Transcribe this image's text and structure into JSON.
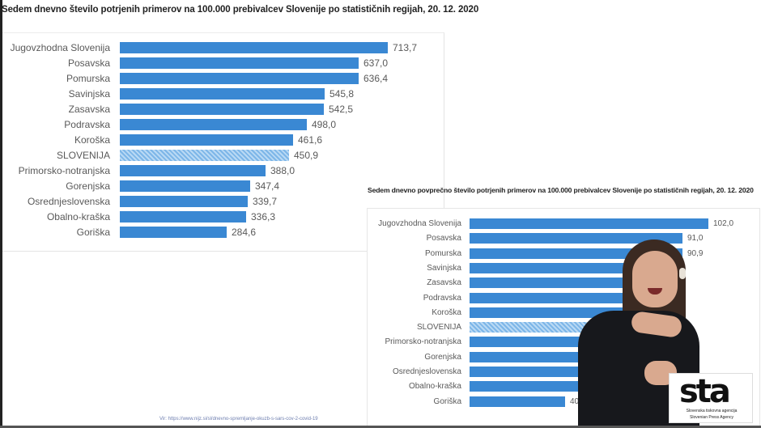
{
  "chart_data": [
    {
      "type": "bar",
      "orientation": "horizontal",
      "title": "Sedem dnevno število potrjenih primerov na 100.000 prebivalcev Slovenije po statističnih regijah, 20. 12. 2020",
      "categories": [
        "Jugovzhodna Slovenija",
        "Posavska",
        "Pomurska",
        "Savinjska",
        "Zasavska",
        "Podravska",
        "Koroška",
        "SLOVENIJA",
        "Primorsko-notranjska",
        "Gorenjska",
        "Osrednjeslovenska",
        "Obalno-kraška",
        "Goriška"
      ],
      "values": [
        713.7,
        637.0,
        636.4,
        545.8,
        542.5,
        498.0,
        461.6,
        450.9,
        388.0,
        347.4,
        339.7,
        336.3,
        284.6
      ],
      "value_labels": [
        "713,7",
        "637,0",
        "636,4",
        "545,8",
        "542,5",
        "498,0",
        "461,6",
        "450,9",
        "388,0",
        "347,4",
        "339,7",
        "336,3",
        "284,6"
      ],
      "highlight": "SLOVENIJA",
      "xlabel": "",
      "ylabel": "",
      "grid": false,
      "legend": null
    },
    {
      "type": "bar",
      "orientation": "horizontal",
      "title": "Sedem dnevno povprečno število potrjenih primerov na 100.000 prebivalcev Slovenije po statističnih regijah, 20. 12. 2020",
      "categories": [
        "Jugovzhodna Slovenija",
        "Posavska",
        "Pomurska",
        "Savinjska",
        "Zasavska",
        "Podravska",
        "Koroška",
        "SLOVENIJA",
        "Primorsko-notranjska",
        "Gorenjska",
        "Osrednjeslovenska",
        "Obalno-kraška",
        "Goriška"
      ],
      "values": [
        102.0,
        91.0,
        90.9,
        78.0,
        77.5,
        71.1,
        65.9,
        64.4,
        55.4,
        49.6,
        48.5,
        48.0,
        40.7
      ],
      "value_labels": [
        "102,0",
        "91,0",
        "90,9",
        "",
        "",
        "",
        "",
        "",
        "",
        "",
        "48,",
        "48,",
        "40,7"
      ],
      "values_estimated_for_occluded": true,
      "highlight": "SLOVENIJA",
      "xlabel": "",
      "ylabel": "",
      "grid": false,
      "legend": null
    }
  ],
  "source_note": "Vir: https://www.nijz.si/sl/dnevno-spremljanje-okuzb-s-sars-cov-2-covid-19",
  "logo": {
    "mark": "sta",
    "line1": "Slovenska tiskovna agencija",
    "line2": "Slovenian Press Agency"
  },
  "colors": {
    "bar": "#3a88d3",
    "national_bar_pattern": "#7db6e8",
    "text": "#595959",
    "title": "#222222"
  }
}
